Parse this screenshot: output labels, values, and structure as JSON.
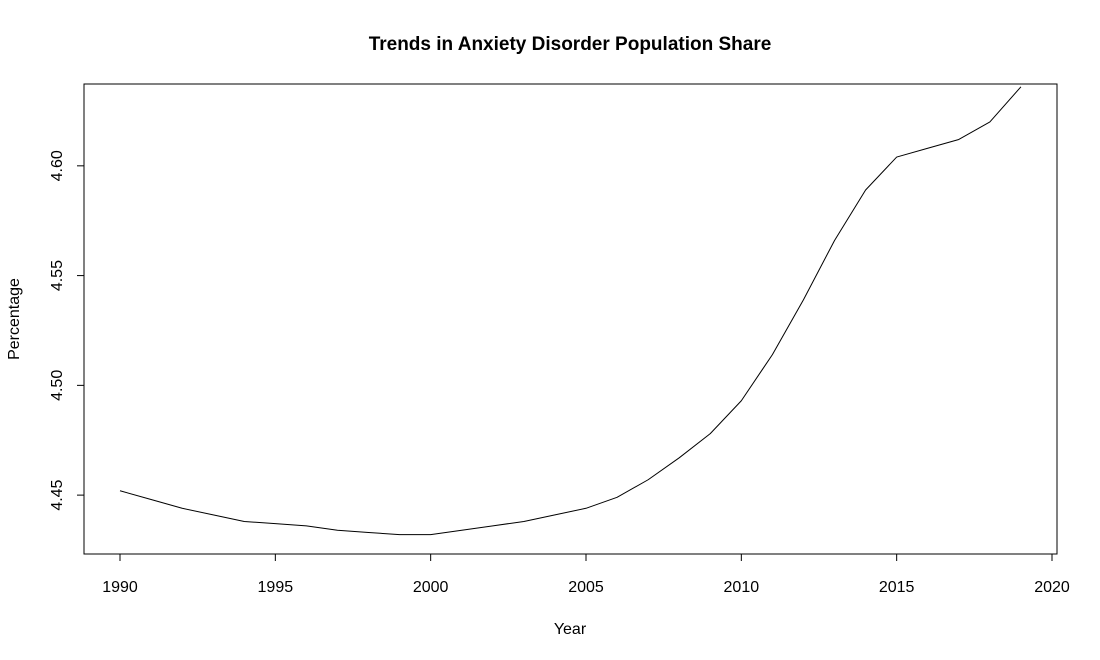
{
  "chart_data": {
    "type": "line",
    "title": "Trends in Anxiety Disorder Population Share",
    "xlabel": "Year",
    "ylabel": "Percentage",
    "xlim": [
      1990,
      2020
    ],
    "ylim": [
      4.425,
      4.635
    ],
    "grid": false,
    "legend": "none",
    "x_ticks": [
      1990,
      1995,
      2000,
      2005,
      2010,
      2015,
      2020
    ],
    "x_tick_labels": [
      "1990",
      "1995",
      "2000",
      "2005",
      "2010",
      "2015",
      "2020"
    ],
    "y_ticks": [
      4.45,
      4.5,
      4.55,
      4.6
    ],
    "y_tick_labels": [
      "4.45",
      "4.50",
      "4.55",
      "4.60"
    ],
    "series": [
      {
        "color": "#000000",
        "x": [
          1990,
          1991,
          1992,
          1993,
          1994,
          1995,
          1996,
          1997,
          1998,
          1999,
          2000,
          2001,
          2002,
          2003,
          2004,
          2005,
          2006,
          2007,
          2008,
          2009,
          2010,
          2011,
          2012,
          2013,
          2014,
          2015,
          2016,
          2017,
          2018,
          2019
        ],
        "values": [
          4.452,
          4.448,
          4.444,
          4.441,
          4.438,
          4.437,
          4.436,
          4.434,
          4.433,
          4.432,
          4.432,
          4.434,
          4.436,
          4.438,
          4.441,
          4.444,
          4.449,
          4.457,
          4.467,
          4.478,
          4.493,
          4.514,
          4.539,
          4.566,
          4.589,
          4.604,
          4.608,
          4.612,
          4.62,
          4.636
        ]
      }
    ]
  }
}
